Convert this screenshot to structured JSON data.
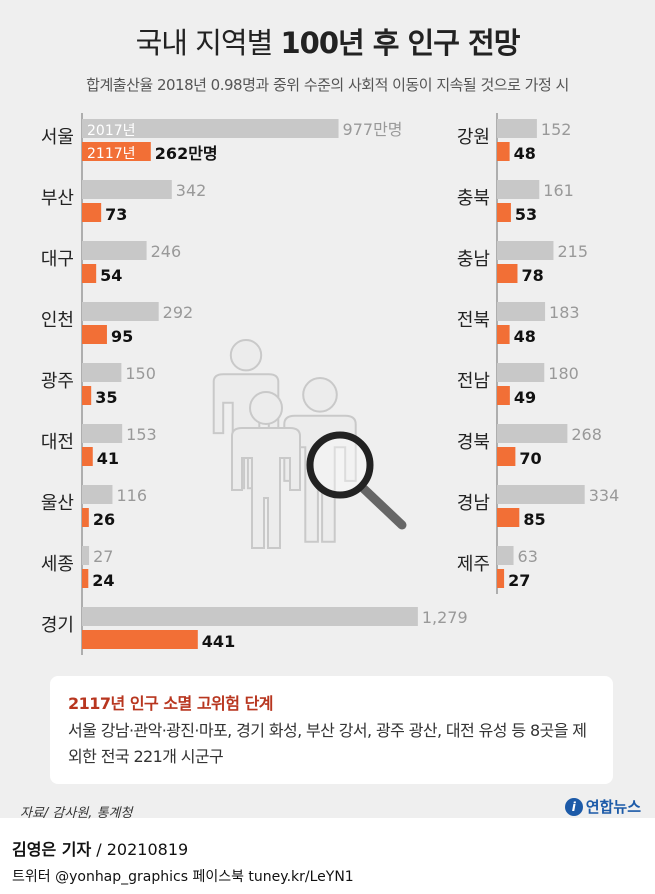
{
  "header": {
    "title_light": "국내 지역별",
    "title_bold": "100년 후 인구 전망",
    "subtitle": "합계출산율 2018년 0.98명과 중위 수준의 사회적 이동이 지속될 것으로 가정 시"
  },
  "chart_data": {
    "type": "bar",
    "orientation": "horizontal",
    "unit": "만명",
    "series": [
      {
        "name": "2017년",
        "color": "#c8c8c8"
      },
      {
        "name": "2117년",
        "color": "#f26f36"
      }
    ],
    "left_panel": [
      {
        "region": "서울",
        "v2017": 977,
        "v2117": 262,
        "label2017": "977",
        "label2117": "262"
      },
      {
        "region": "부산",
        "v2017": 342,
        "v2117": 73,
        "label2017": "342",
        "label2117": "73"
      },
      {
        "region": "대구",
        "v2017": 246,
        "v2117": 54,
        "label2017": "246",
        "label2117": "54"
      },
      {
        "region": "인천",
        "v2017": 292,
        "v2117": 95,
        "label2017": "292",
        "label2117": "95"
      },
      {
        "region": "광주",
        "v2017": 150,
        "v2117": 35,
        "label2017": "150",
        "label2117": "35"
      },
      {
        "region": "대전",
        "v2017": 153,
        "v2117": 41,
        "label2017": "153",
        "label2117": "41"
      },
      {
        "region": "울산",
        "v2017": 116,
        "v2117": 26,
        "label2017": "116",
        "label2117": "26"
      },
      {
        "region": "세종",
        "v2017": 27,
        "v2117": 24,
        "label2017": "27",
        "label2117": "24"
      },
      {
        "region": "경기",
        "v2017": 1279,
        "v2117": 441,
        "label2017": "1,279",
        "label2117": "441"
      }
    ],
    "right_panel": [
      {
        "region": "강원",
        "v2017": 152,
        "v2117": 48,
        "label2017": "152",
        "label2117": "48"
      },
      {
        "region": "충북",
        "v2017": 161,
        "v2117": 53,
        "label2017": "161",
        "label2117": "53"
      },
      {
        "region": "충남",
        "v2017": 215,
        "v2117": 78,
        "label2017": "215",
        "label2117": "78"
      },
      {
        "region": "전북",
        "v2017": 183,
        "v2117": 48,
        "label2017": "183",
        "label2117": "48"
      },
      {
        "region": "전남",
        "v2017": 180,
        "v2117": 49,
        "label2017": "180",
        "label2117": "49"
      },
      {
        "region": "경북",
        "v2017": 268,
        "v2117": 70,
        "label2017": "268",
        "label2117": "70"
      },
      {
        "region": "경남",
        "v2017": 334,
        "v2117": 85,
        "label2017": "334",
        "label2117": "85"
      },
      {
        "region": "제주",
        "v2017": 63,
        "v2117": 27,
        "label2017": "63",
        "label2117": "27"
      }
    ]
  },
  "illustration": {
    "icon": "people-with-magnifier-icon"
  },
  "note": {
    "heading": "2117년 인구 소멸 고위험 단계",
    "body": "서울 강남·관악·광진·마포, 경기 화성, 부산 강서, 광주 광산, 대전 유성 등 8곳을 제외한 전국 221개 시군구"
  },
  "footer": {
    "source": "자료/ 감사원, 통계청",
    "logo": "연합뉴스",
    "reporter": "김영은 기자",
    "date": "20210819",
    "credit": "트위터 @yonhap_graphics  페이스북 tuney.kr/LeYN1"
  }
}
